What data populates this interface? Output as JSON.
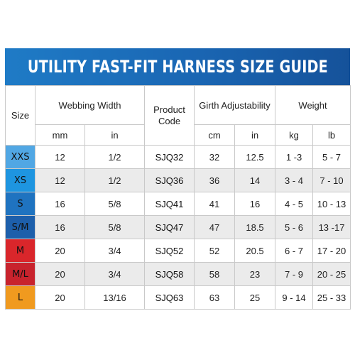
{
  "title": "UTILITY FAST-FIT HARNESS SIZE GUIDE",
  "headers": {
    "size": "Size",
    "webbing_width": "Webbing Width",
    "product_code_line1": "Product",
    "product_code_line2": "Code",
    "girth": "Girth Adjustability",
    "weight": "Weight",
    "webbing_mm": "mm",
    "webbing_in": "in",
    "girth_cm": "cm",
    "girth_in": "in",
    "weight_kg": "kg",
    "weight_lb": "lb"
  },
  "size_colors": {
    "XXS": "#51a7e4",
    "XS": "#1e95e0",
    "S": "#1f73c0",
    "S/M": "#1d5fab",
    "M": "#d9262b",
    "M/L": "#c8232d",
    "L": "#f09a1f"
  },
  "rows": [
    {
      "size": "XXS",
      "mm": "12",
      "in": "1/2",
      "code": "SJQ32",
      "cm": "32",
      "girth_in": "12.5",
      "kg": "1 -3",
      "lb": "5 - 7"
    },
    {
      "size": "XS",
      "mm": "12",
      "in": "1/2",
      "code": "SJQ36",
      "cm": "36",
      "girth_in": "14",
      "kg": "3 - 4",
      "lb": "7 - 10"
    },
    {
      "size": "S",
      "mm": "16",
      "in": "5/8",
      "code": "SJQ41",
      "cm": "41",
      "girth_in": "16",
      "kg": "4 - 5",
      "lb": "10 - 13"
    },
    {
      "size": "S/M",
      "mm": "16",
      "in": "5/8",
      "code": "SJQ47",
      "cm": "47",
      "girth_in": "18.5",
      "kg": "5 - 6",
      "lb": "13 -17"
    },
    {
      "size": "M",
      "mm": "20",
      "in": "3/4",
      "code": "SJQ52",
      "cm": "52",
      "girth_in": "20.5",
      "kg": "6 - 7",
      "lb": "17 - 20"
    },
    {
      "size": "M/L",
      "mm": "20",
      "in": "3/4",
      "code": "SJQ58",
      "cm": "58",
      "girth_in": "23",
      "kg": "7 - 9",
      "lb": "20 - 25"
    },
    {
      "size": "L",
      "mm": "20",
      "in": "13/16",
      "code": "SJQ63",
      "cm": "63",
      "girth_in": "25",
      "kg": "9 - 14",
      "lb": "25 - 33"
    }
  ]
}
